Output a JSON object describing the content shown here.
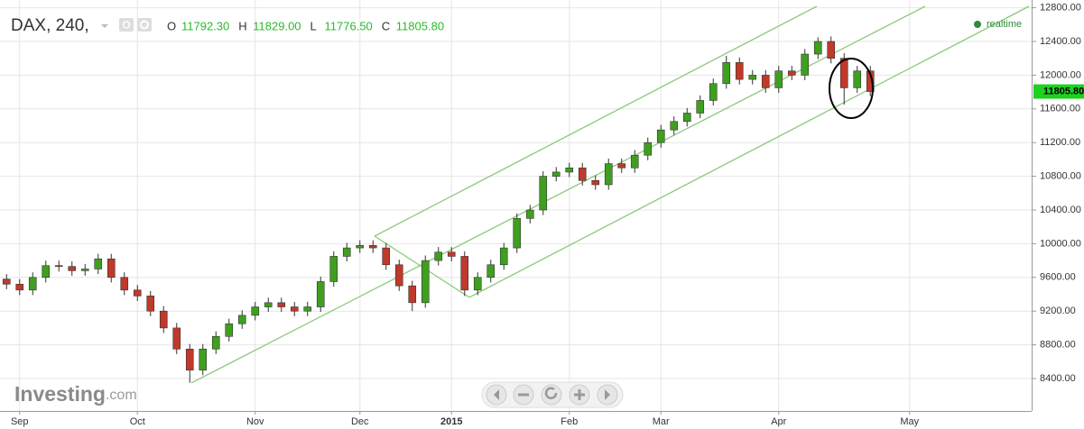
{
  "chart_data": {
    "type": "candlestick",
    "title": "DAX, 240,",
    "ohlc_legend": [
      {
        "label": "O",
        "value": "11792.30"
      },
      {
        "label": "H",
        "value": "11829.00"
      },
      {
        "label": "L",
        "value": "11776.50"
      },
      {
        "label": "C",
        "value": "11805.80"
      }
    ],
    "status": "realtime",
    "brand": "Investing",
    "brand_suffix": ".com",
    "categories": [
      null,
      "Sep",
      null,
      null,
      null,
      null,
      null,
      null,
      null,
      null,
      "Oct",
      null,
      null,
      null,
      null,
      null,
      null,
      null,
      null,
      "Nov",
      null,
      null,
      null,
      null,
      null,
      null,
      null,
      "Dec",
      null,
      null,
      null,
      null,
      null,
      null,
      "2015",
      null,
      null,
      null,
      null,
      null,
      null,
      null,
      null,
      "Feb",
      null,
      null,
      null,
      null,
      null,
      null,
      "Mar",
      null,
      null,
      null,
      null,
      null,
      null,
      null,
      null,
      "Apr",
      null,
      null,
      null,
      null,
      null,
      null,
      null,
      null,
      null,
      "May",
      null,
      null,
      null,
      null,
      null,
      null,
      null,
      null,
      null
    ],
    "open": [
      9580,
      9520,
      9450,
      9600,
      9740,
      9730,
      9680,
      9700,
      9820,
      9600,
      9450,
      9380,
      9200,
      9000,
      8750,
      8500,
      8750,
      8900,
      9050,
      9150,
      9250,
      9300,
      9250,
      9200,
      9250,
      9550,
      9850,
      9950,
      9980,
      9950,
      9750,
      9500,
      9300,
      9800,
      9900,
      9850,
      9450,
      9600,
      9750,
      9950,
      10300,
      10400,
      10800,
      10850,
      10900,
      10750,
      10700,
      10950,
      10900,
      11050,
      11200,
      11350,
      11450,
      11550,
      11700,
      11900,
      12150,
      11950,
      12000,
      11850,
      12050,
      12000,
      12250,
      12400,
      12200,
      11850,
      12050,
      null,
      null,
      null,
      null,
      null,
      null,
      null,
      null,
      null,
      null,
      null,
      null
    ],
    "high": [
      9640,
      9580,
      9660,
      9800,
      9800,
      9790,
      9760,
      9880,
      9880,
      9660,
      9510,
      9440,
      9260,
      9060,
      8810,
      8810,
      8960,
      9110,
      9210,
      9310,
      9360,
      9360,
      9310,
      9310,
      9610,
      9910,
      10010,
      10040,
      10040,
      10010,
      9810,
      9560,
      9860,
      9960,
      9960,
      9910,
      9660,
      9810,
      10010,
      10360,
      10460,
      10860,
      10910,
      10960,
      10960,
      10810,
      11010,
      11010,
      11110,
      11260,
      11410,
      11510,
      11610,
      11760,
      11960,
      12230,
      12210,
      12060,
      12060,
      12110,
      12110,
      12310,
      12450,
      12460,
      12260,
      12110,
      12110,
      null,
      null,
      null,
      null,
      null,
      null,
      null,
      null,
      null,
      null,
      null,
      null
    ],
    "low": [
      9460,
      9390,
      9390,
      9540,
      9670,
      9620,
      9620,
      9640,
      9540,
      9390,
      9320,
      9140,
      8940,
      8690,
      8350,
      8440,
      8690,
      8840,
      8990,
      9090,
      9190,
      9190,
      9140,
      9140,
      9190,
      9490,
      9790,
      9890,
      9890,
      9690,
      9440,
      9200,
      9240,
      9740,
      9790,
      9380,
      9390,
      9540,
      9690,
      9890,
      10240,
      10340,
      10740,
      10790,
      10690,
      10640,
      10640,
      10840,
      10840,
      10990,
      11140,
      11290,
      11390,
      11490,
      11640,
      11840,
      11890,
      11890,
      11790,
      11790,
      11940,
      11940,
      12190,
      12140,
      11650,
      11790,
      11750,
      null,
      null,
      null,
      null,
      null,
      null,
      null,
      null,
      null,
      null,
      null,
      null
    ],
    "close": [
      9520,
      9450,
      9600,
      9740,
      9730,
      9680,
      9700,
      9820,
      9600,
      9450,
      9380,
      9200,
      9000,
      8750,
      8500,
      8750,
      8900,
      9050,
      9150,
      9250,
      9300,
      9250,
      9200,
      9250,
      9550,
      9850,
      9950,
      9980,
      9950,
      9750,
      9500,
      9300,
      9800,
      9900,
      9850,
      9450,
      9600,
      9750,
      9950,
      10300,
      10400,
      10800,
      10850,
      10900,
      10750,
      10700,
      10950,
      10900,
      11050,
      11200,
      11350,
      11450,
      11550,
      11700,
      11900,
      12150,
      11950,
      12000,
      11850,
      12050,
      12000,
      12250,
      12400,
      12200,
      11850,
      12050,
      11805.8,
      null,
      null,
      null,
      null,
      null,
      null,
      null,
      null,
      null,
      null,
      null,
      null
    ],
    "up_color": "#3f9f1f",
    "down_color": "#c0392b",
    "last_price": {
      "value": 11805.8,
      "label": "11805.80"
    },
    "channel_color": "#8cc97a",
    "channel_lines": [
      {
        "x": [
          14.12,
          70.19
        ],
        "y": [
          8347,
          12817
        ]
      },
      {
        "x": [
          28.12,
          61.91
        ],
        "y": [
          10090,
          12817
        ]
      },
      {
        "x": [
          35.36,
          78.12
        ],
        "y": [
          9363,
          12817
        ]
      },
      {
        "x": [
          28.12,
          35.36
        ],
        "y": [
          10090,
          9363
        ]
      }
    ],
    "ylim": [
      8015,
      12892
    ],
    "yticks": [
      {
        "value": 8400,
        "label": "8400.00"
      },
      {
        "value": 8800,
        "label": "8800.00"
      },
      {
        "value": 9200,
        "label": "9200.00"
      },
      {
        "value": 9600,
        "label": "9600.00"
      },
      {
        "value": 10000,
        "label": "10000.00"
      },
      {
        "value": 10400,
        "label": "10400.00"
      },
      {
        "value": 10800,
        "label": "10800.00"
      },
      {
        "value": 11200,
        "label": "11200.00"
      },
      {
        "value": 11600,
        "label": "11600.00"
      },
      {
        "value": 12000,
        "label": "12000.00"
      },
      {
        "value": 12400,
        "label": "12400.00"
      },
      {
        "value": 12800,
        "label": "12800.00"
      }
    ],
    "grid": true
  }
}
